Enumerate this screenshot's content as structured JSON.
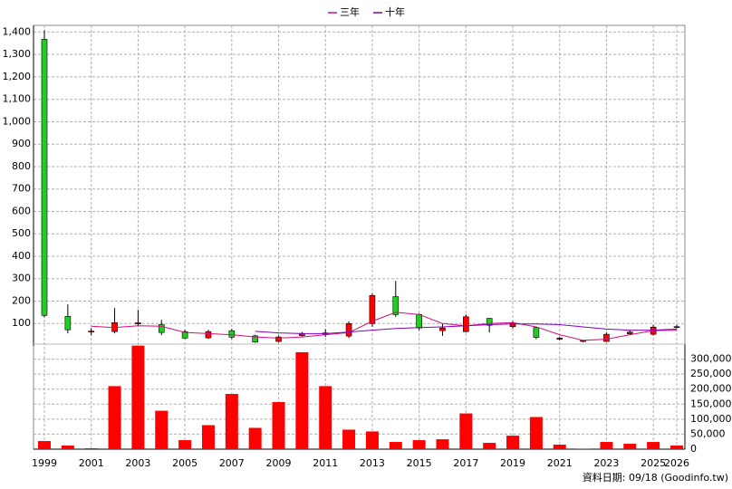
{
  "chart_data": [
    {
      "type": "candlestick",
      "open": [
        1368,
        132,
        64,
        64,
        98,
        96,
        64,
        36,
        68,
        45,
        20,
        46,
        50,
        44,
        100,
        220,
        140,
        68,
        64,
        123,
        86,
        82,
        30,
        20,
        20,
        54,
        52,
        82
      ],
      "high": [
        1408,
        185,
        80,
        169,
        161,
        116,
        72,
        72,
        76,
        50,
        46,
        62,
        75,
        110,
        235,
        290,
        145,
        98,
        140,
        125,
        110,
        85,
        42,
        26,
        60,
        70,
        94,
        95
      ],
      "low": [
        128,
        56,
        48,
        56,
        88,
        48,
        31,
        31,
        31,
        14,
        16,
        40,
        40,
        35,
        85,
        130,
        70,
        45,
        60,
        60,
        78,
        30,
        25,
        16,
        18,
        48,
        48,
        78
      ],
      "close": [
        136,
        72,
        66,
        104,
        103,
        60,
        35,
        64,
        39,
        17,
        40,
        56,
        58,
        100,
        225,
        140,
        80,
        80,
        130,
        92,
        102,
        38,
        35,
        24,
        52,
        62,
        84,
        86
      ],
      "up_color": "#ff0000",
      "down_color": "#22cc22",
      "series": [
        {
          "name": "三年",
          "color": "#d0107a",
          "values": [
            null,
            null,
            88,
            82,
            90,
            88,
            60,
            55,
            50,
            40,
            35,
            40,
            50,
            60,
            110,
            150,
            140,
            100,
            90,
            100,
            104,
            85,
            50,
            25,
            30,
            50,
            68,
            70
          ]
        },
        {
          "name": "十年",
          "color": "#8000c0",
          "values": [
            null,
            null,
            null,
            null,
            null,
            null,
            null,
            null,
            null,
            65,
            58,
            55,
            55,
            62,
            70,
            78,
            82,
            85,
            90,
            95,
            98,
            98,
            95,
            85,
            75,
            70,
            70,
            75
          ]
        }
      ],
      "ylim": [
        0,
        1430
      ],
      "yticks": [
        100,
        200,
        300,
        400,
        500,
        600,
        700,
        800,
        900,
        {
          "value": 1000,
          "label": "1,000"
        },
        {
          "value": 1100,
          "label": "1,100"
        },
        {
          "value": 1200,
          "label": "1,200"
        },
        {
          "value": 1300,
          "label": "1,300"
        },
        {
          "value": 1400,
          "label": "1,400"
        }
      ],
      "grid": true
    },
    {
      "type": "bar",
      "categories": [
        "1999",
        null,
        "2001",
        null,
        "2003",
        null,
        "2005",
        null,
        "2007",
        null,
        "2009",
        null,
        "2011",
        null,
        "2013",
        null,
        "2015",
        null,
        "2017",
        null,
        "2019",
        null,
        "2021",
        null,
        "2023",
        null,
        "2025",
        "2026"
      ],
      "values": [
        27000,
        12000,
        3000,
        210000,
        345000,
        128000,
        30000,
        80000,
        184000,
        71000,
        157000,
        323000,
        210000,
        65000,
        59000,
        24000,
        30000,
        33000,
        119000,
        21000,
        45000,
        107000,
        15000,
        1000,
        24000,
        18000,
        24000,
        12000
      ],
      "color": "#ff0000",
      "ylim": [
        0,
        350000
      ],
      "yticks": [
        0,
        {
          "value": 50000,
          "label": "50,000"
        },
        {
          "value": 100000,
          "label": "100,000"
        },
        {
          "value": 150000,
          "label": "150,000"
        },
        {
          "value": 200000,
          "label": "200,000"
        },
        {
          "value": 250000,
          "label": "250,000"
        },
        {
          "value": 300000,
          "label": "300,000"
        }
      ],
      "grid": true,
      "footer": "資料日期: 09/18  (Goodinfo.tw)"
    }
  ]
}
